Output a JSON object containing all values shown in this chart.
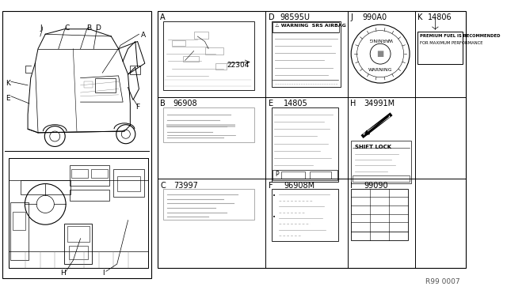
{
  "bg_color": "#ffffff",
  "ref_number": "R99 0007",
  "part_A": "22304",
  "part_B": "96908",
  "part_C": "73997",
  "part_D": "98595U",
  "part_E": "14805",
  "part_F": "96908M",
  "part_J": "990A0",
  "part_H": "34991M",
  "part_I": "99090",
  "part_K": "14806",
  "gray1": "#aaaaaa",
  "gray2": "#cccccc",
  "gray3": "#888888",
  "line_color": "#000000",
  "label_fs": 6.5,
  "part_fs": 6.5
}
